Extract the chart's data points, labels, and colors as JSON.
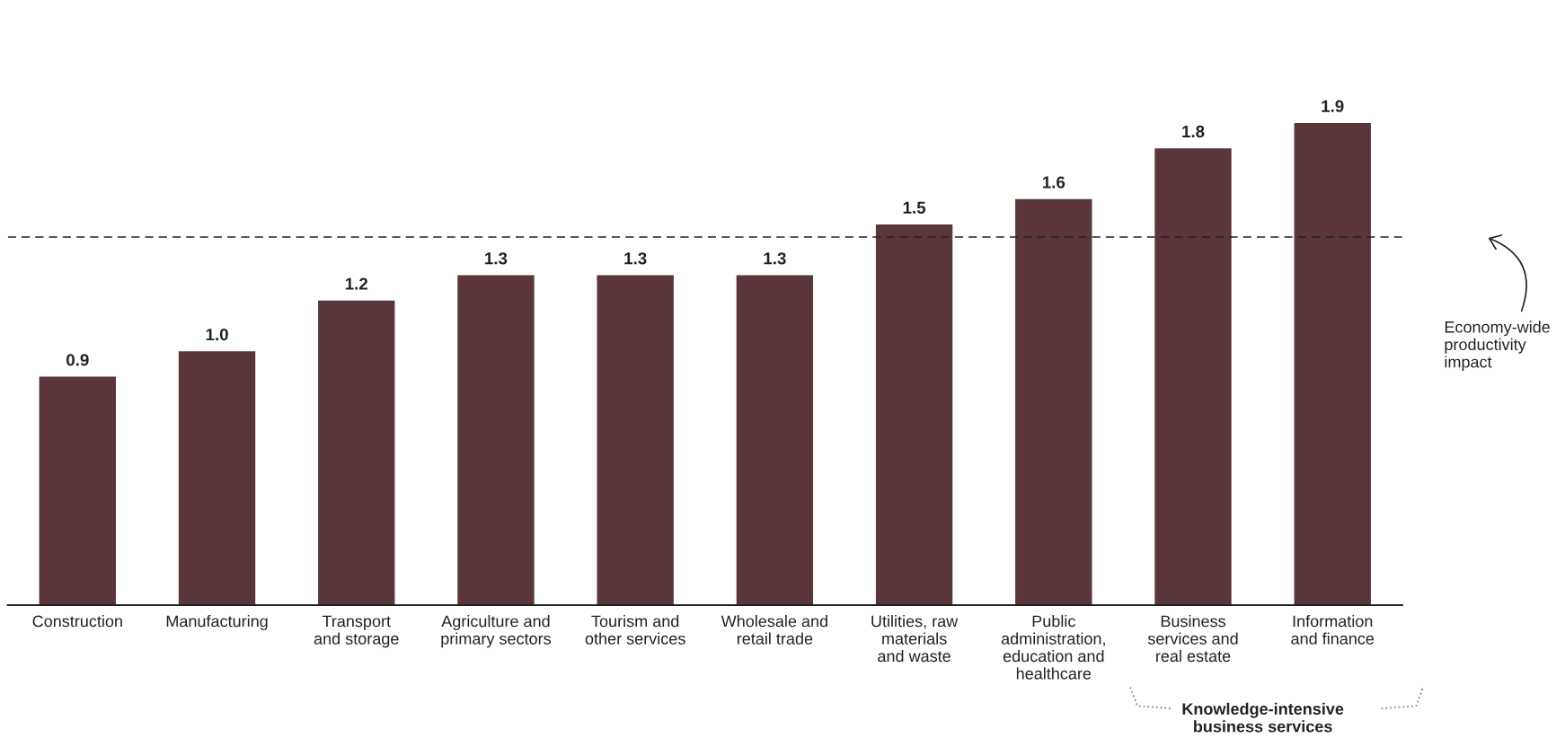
{
  "chart_data": {
    "type": "bar",
    "categories": [
      "Construction",
      "Manufacturing",
      "Transport\nand storage",
      "Agriculture and\nprimary sectors",
      "Tourism and\nother services",
      "Wholesale and\nretail trade",
      "Utilities, raw\nmaterials\nand waste",
      "Public\nadministration,\neducation and\nhealthcare",
      "Business\nservices and\nreal estate",
      "Information\nand finance"
    ],
    "values": [
      0.9,
      1.0,
      1.2,
      1.3,
      1.3,
      1.3,
      1.5,
      1.6,
      1.8,
      1.9
    ],
    "color": "#5a363a",
    "value_labels": [
      "0.9",
      "1.0",
      "1.2",
      "1.3",
      "1.3",
      "1.3",
      "1.5",
      "1.6",
      "1.8",
      "1.9"
    ],
    "ref_lines": [
      {
        "axis": "y",
        "value": 1.45,
        "label": "Economy-wide\nproductivity\nimpact",
        "line_style": "dashed",
        "color": "#222222"
      }
    ],
    "annotations": [
      "Knowledge-intensive\nbusiness services"
    ],
    "grid": false
  }
}
